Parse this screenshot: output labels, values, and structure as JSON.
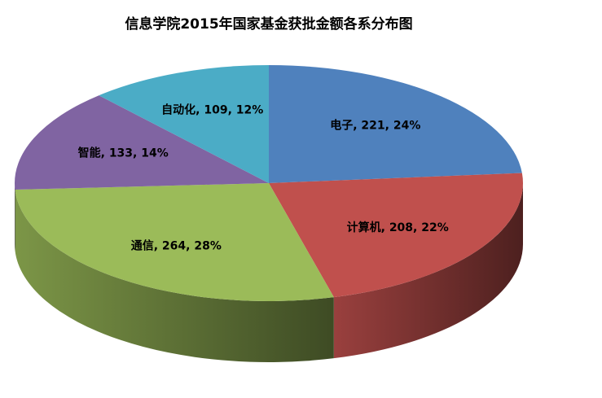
{
  "chart_data": {
    "type": "pie3d",
    "title": "信息学院2015年国家基金获批金额各系分布图",
    "values": [
      221,
      208,
      264,
      133,
      109
    ],
    "value_labels": [
      "电子, 221, 24%",
      "计算机, 208, 22%",
      "通信, 264, 28%",
      "智能, 133, 14%",
      "自动化, 109, 12%"
    ],
    "colors": [
      "#4f81bd",
      "#c0504d",
      "#9bbb59",
      "#8064a2",
      "#4bacc6"
    ]
  }
}
